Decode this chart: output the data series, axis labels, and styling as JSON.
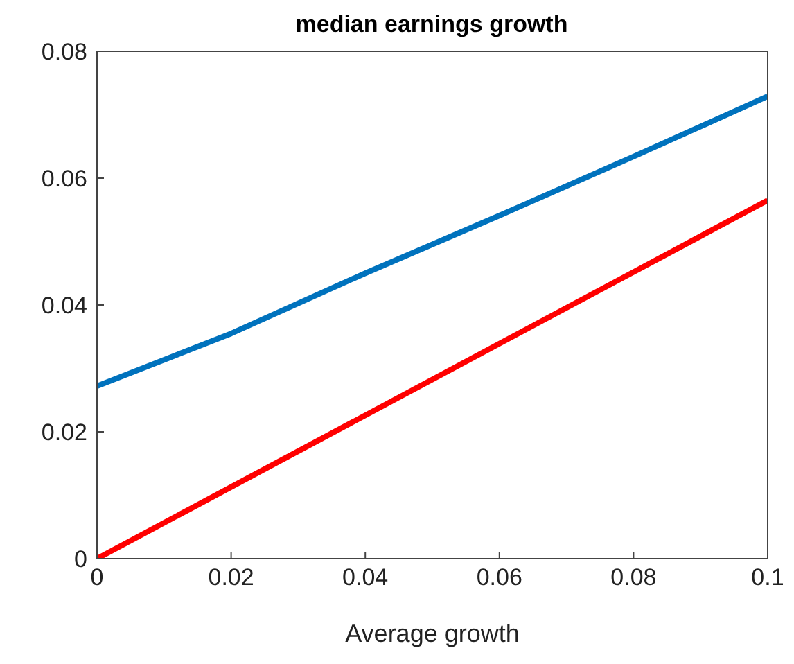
{
  "chart_data": {
    "type": "line",
    "title": "median earnings growth",
    "xlabel": "Average growth",
    "x": [
      0,
      0.02,
      0.04,
      0.06,
      0.08,
      0.1
    ],
    "series": [
      {
        "color": "#0072bd",
        "values": [
          0.0272,
          0.0355,
          0.045,
          0.0541,
          0.0634,
          0.0729
        ]
      },
      {
        "color": "#ff0000",
        "values": [
          0,
          0.0113,
          0.0226,
          0.0339,
          0.0452,
          0.0565
        ]
      }
    ],
    "xlim": [
      0,
      0.1
    ],
    "xticks": [
      0,
      0.02,
      0.04,
      0.06,
      0.08,
      0.1
    ],
    "ylim": [
      0,
      0.08
    ],
    "yticks": [
      0,
      0.02,
      0.04,
      0.06,
      0.08
    ],
    "grid": false,
    "legend": false,
    "marker": "none",
    "line_style": "solid"
  }
}
